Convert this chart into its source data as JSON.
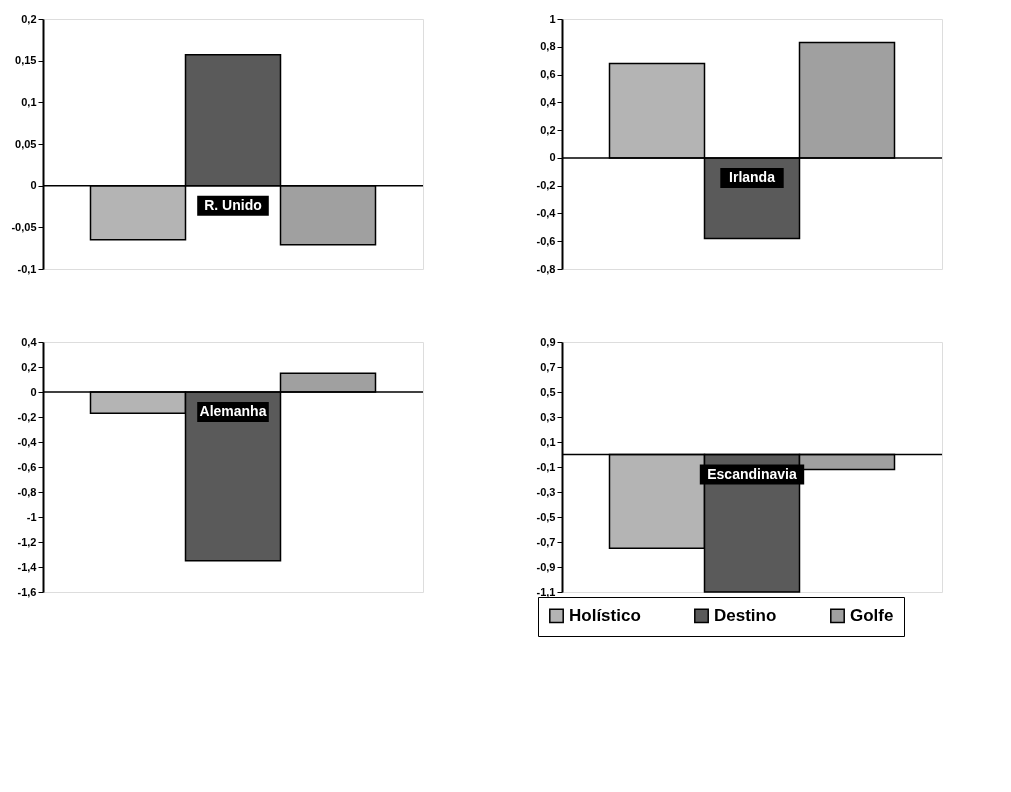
{
  "chart_data": [
    {
      "type": "bar",
      "title": "R. Unido",
      "categories": [
        null
      ],
      "legend": "bottom right",
      "ylim": [
        -0.1,
        0.2
      ],
      "yticks": [
        {
          "value": -0.1,
          "label": "-0,1"
        },
        {
          "value": -0.05,
          "label": "-0,05"
        },
        {
          "value": 0,
          "label": "0"
        },
        {
          "value": 0.05,
          "label": "0,05"
        },
        {
          "value": 0.1,
          "label": "0,1"
        },
        {
          "value": 0.15,
          "label": "0,15"
        },
        {
          "value": 0.2,
          "label": "0,2"
        }
      ],
      "series": [
        {
          "name": "Holístico",
          "color": "#b4b4b4",
          "values": [
            -0.065
          ]
        },
        {
          "name": "Destino",
          "color": "#5a5a5a",
          "values": [
            0.157
          ]
        },
        {
          "name": "Golfe",
          "color": "#a0a0a0",
          "values": [
            -0.071
          ]
        }
      ]
    },
    {
      "type": "bar",
      "title": "Irlanda",
      "categories": [
        null
      ],
      "legend": "bottom right",
      "ylim": [
        -0.8,
        1
      ],
      "yticks": [
        {
          "value": -0.8,
          "label": "-0,8"
        },
        {
          "value": -0.6,
          "label": "-0,6"
        },
        {
          "value": -0.4,
          "label": "-0,4"
        },
        {
          "value": -0.2,
          "label": "-0,2"
        },
        {
          "value": 0,
          "label": "0"
        },
        {
          "value": 0.2,
          "label": "0,2"
        },
        {
          "value": 0.4,
          "label": "0,4"
        },
        {
          "value": 0.6,
          "label": "0,6"
        },
        {
          "value": 0.8,
          "label": "0,8"
        },
        1
      ],
      "series": [
        {
          "name": "Holístico",
          "color": "#b4b4b4",
          "values": [
            0.68
          ]
        },
        {
          "name": "Destino",
          "color": "#5a5a5a",
          "values": [
            -0.58
          ]
        },
        {
          "name": "Golfe",
          "color": "#a0a0a0",
          "values": [
            0.83
          ]
        }
      ]
    },
    {
      "type": "bar",
      "title": "Alemanha",
      "categories": [
        null
      ],
      "legend": "bottom right",
      "ylim": [
        -1.6,
        0.4
      ],
      "yticks": [
        {
          "value": -1.6,
          "label": "-1,6"
        },
        {
          "value": -1.4,
          "label": "-1,4"
        },
        {
          "value": -1.2,
          "label": "-1,2"
        },
        -1,
        {
          "value": -0.8,
          "label": "-0,8"
        },
        {
          "value": -0.6,
          "label": "-0,6"
        },
        {
          "value": -0.4,
          "label": "-0,4"
        },
        {
          "value": -0.2,
          "label": "-0,2"
        },
        {
          "value": 0,
          "label": "0"
        },
        {
          "value": 0.2,
          "label": "0,2"
        },
        {
          "value": 0.4,
          "label": "0,4"
        }
      ],
      "series": [
        {
          "name": "Holístico",
          "color": "#b4b4b4",
          "values": [
            -0.17
          ]
        },
        {
          "name": "Destino",
          "color": "#5a5a5a",
          "values": [
            -1.35
          ]
        },
        {
          "name": "Golfe",
          "color": "#a0a0a0",
          "values": [
            0.15
          ]
        }
      ]
    },
    {
      "type": "bar",
      "title": "Escandinavia",
      "categories": [
        null
      ],
      "legend": "bottom right",
      "ylim": [
        -1.1,
        0.9
      ],
      "yticks": [
        {
          "value": -1.1,
          "label": "-1,1"
        },
        {
          "value": -0.9,
          "label": "-0,9"
        },
        {
          "value": -0.7,
          "label": "-0,7"
        },
        {
          "value": -0.5,
          "label": "-0,5"
        },
        {
          "value": -0.3,
          "label": "-0,3"
        },
        {
          "value": -0.1,
          "label": "-0,1"
        },
        {
          "value": 0.1,
          "label": "0,1"
        },
        {
          "value": 0.3,
          "label": "0,3"
        },
        {
          "value": 0.5,
          "label": "0,5"
        },
        {
          "value": 0.7,
          "label": "0,7"
        },
        {
          "value": 0.9,
          "label": "0,9"
        }
      ],
      "series": [
        {
          "name": "Holístico",
          "color": "#b4b4b4",
          "values": [
            -0.75
          ]
        },
        {
          "name": "Destino",
          "color": "#5a5a5a",
          "values": [
            -1.1
          ]
        },
        {
          "name": "Golfe",
          "color": "#a0a0a0",
          "values": [
            -0.12
          ]
        }
      ]
    }
  ]
}
